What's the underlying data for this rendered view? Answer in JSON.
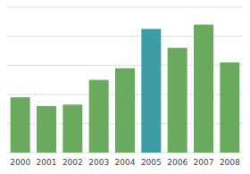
{
  "chart_data": {
    "type": "bar",
    "categories": [
      "2000",
      "2001",
      "2002",
      "2003",
      "2004",
      "2005",
      "2006",
      "2007",
      "2008"
    ],
    "values": [
      38,
      32,
      33,
      50,
      58,
      85,
      72,
      88,
      62
    ],
    "colors": [
      "#6aaa5f",
      "#6aaa5f",
      "#6aaa5f",
      "#6aaa5f",
      "#6aaa5f",
      "#3d9da6",
      "#6aaa5f",
      "#6aaa5f",
      "#6aaa5f"
    ],
    "ylim": [
      0,
      100
    ],
    "yticks": [
      0,
      20,
      40,
      60,
      80,
      100
    ],
    "grid": true,
    "tick_labels": "x"
  }
}
